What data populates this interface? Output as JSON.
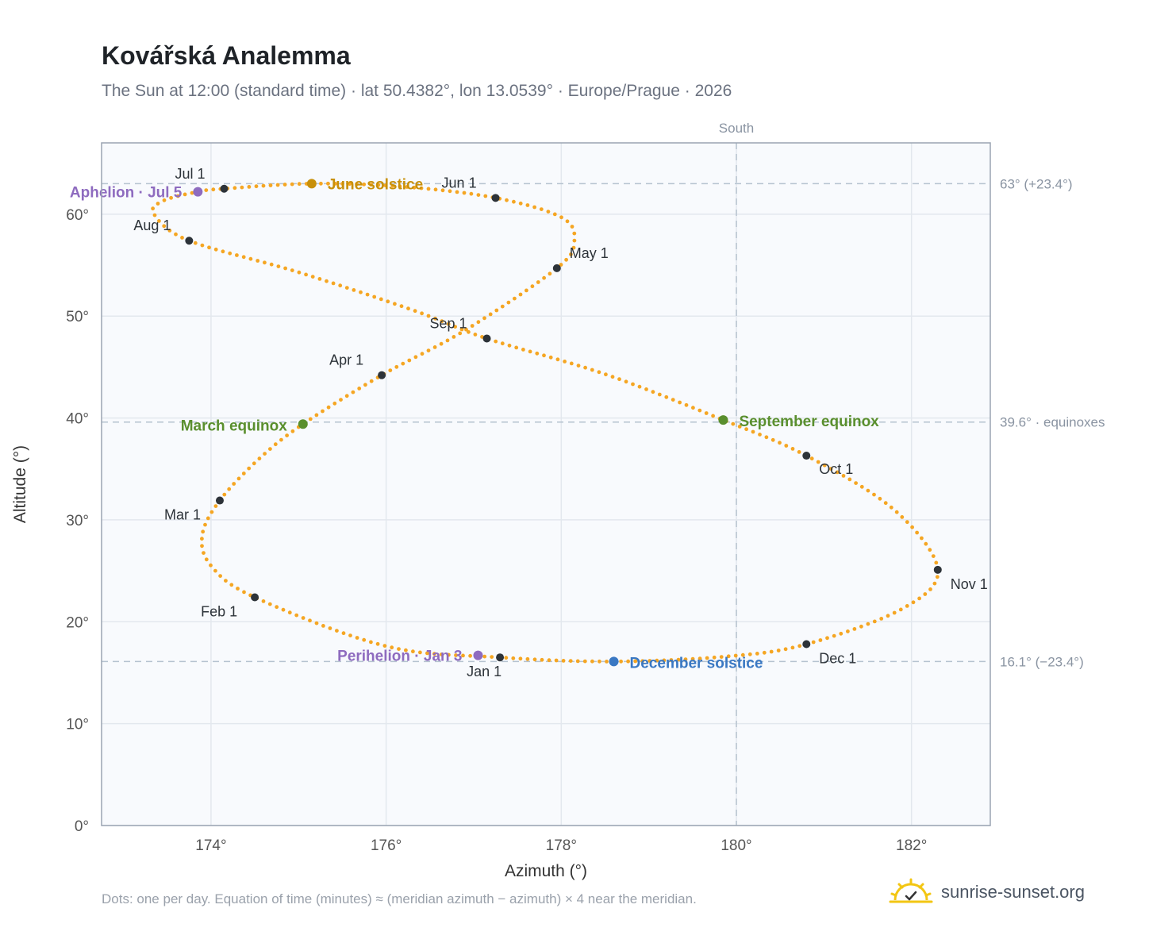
{
  "chart_data": {
    "type": "scatter",
    "title": "Kovářská Analemma",
    "subtitle": "The Sun at 12:00 (standard time) · lat 50.4382°, lon 13.0539° · Europe/Prague · 2026",
    "xlabel": "Azimuth (°)",
    "ylabel": "Altitude (°)",
    "xlim": [
      172.75,
      182.9
    ],
    "ylim": [
      0,
      67
    ],
    "x_ticks": [
      174,
      176,
      178,
      180,
      182
    ],
    "x_tick_labels": [
      "174°",
      "176°",
      "178°",
      "180°",
      "182°"
    ],
    "y_ticks": [
      0,
      10,
      20,
      30,
      40,
      50,
      60
    ],
    "y_tick_labels": [
      "0°",
      "10°",
      "20°",
      "30°",
      "40°",
      "50°",
      "60°"
    ],
    "grid": true,
    "meridian": {
      "azimuth": 180,
      "label": "South"
    },
    "reference_lines": [
      {
        "altitude": 63.0,
        "label": "63° (+23.4°)"
      },
      {
        "altitude": 39.6,
        "label": "39.6° · equinoxes"
      },
      {
        "altitude": 16.1,
        "label": "16.1° (−23.4°)"
      }
    ],
    "series_color": "#f5a623",
    "path_knots": [
      [
        178.6,
        16.1
      ],
      [
        177.3,
        16.5
      ],
      [
        176.0,
        17.6
      ],
      [
        174.5,
        22.4
      ],
      [
        174.0,
        25.5
      ],
      [
        173.9,
        28.5
      ],
      [
        174.1,
        31.9
      ],
      [
        174.55,
        36.0
      ],
      [
        175.05,
        39.4
      ],
      [
        175.95,
        44.2
      ],
      [
        176.9,
        48.6
      ],
      [
        177.95,
        54.7
      ],
      [
        178.15,
        57.4
      ],
      [
        178.0,
        59.7
      ],
      [
        177.25,
        61.6
      ],
      [
        176.2,
        62.7
      ],
      [
        175.15,
        63.0
      ],
      [
        174.15,
        62.5
      ],
      [
        173.85,
        62.2
      ],
      [
        173.45,
        61.3
      ],
      [
        173.35,
        60.0
      ],
      [
        173.75,
        57.4
      ],
      [
        175.0,
        54.3
      ],
      [
        176.3,
        50.6
      ],
      [
        177.15,
        47.8
      ],
      [
        178.5,
        44.3
      ],
      [
        179.85,
        39.8
      ],
      [
        180.8,
        36.3
      ],
      [
        181.8,
        31.0
      ],
      [
        182.3,
        25.1
      ],
      [
        181.9,
        21.3
      ],
      [
        180.8,
        17.8
      ],
      [
        179.9,
        16.6
      ],
      [
        178.6,
        16.1
      ]
    ],
    "month_points": [
      {
        "label": "Jan 1",
        "az": 177.3,
        "alt": 16.5
      },
      {
        "label": "Feb 1",
        "az": 174.5,
        "alt": 22.4
      },
      {
        "label": "Mar 1",
        "az": 174.1,
        "alt": 31.9
      },
      {
        "label": "Apr 1",
        "az": 175.95,
        "alt": 44.2
      },
      {
        "label": "May 1",
        "az": 177.95,
        "alt": 54.7
      },
      {
        "label": "Jun 1",
        "az": 177.25,
        "alt": 61.6
      },
      {
        "label": "Jul 1",
        "az": 174.15,
        "alt": 62.5
      },
      {
        "label": "Aug 1",
        "az": 173.75,
        "alt": 57.4
      },
      {
        "label": "Sep 1",
        "az": 177.15,
        "alt": 47.8
      },
      {
        "label": "Oct 1",
        "az": 180.8,
        "alt": 36.3
      },
      {
        "label": "Nov 1",
        "az": 182.3,
        "alt": 25.1
      },
      {
        "label": "Dec 1",
        "az": 180.8,
        "alt": 17.8
      }
    ],
    "events": [
      {
        "label": "June solstice",
        "az": 175.15,
        "alt": 63.0,
        "color": "#c8900a"
      },
      {
        "label": "Aphelion · Jul 5",
        "az": 173.85,
        "alt": 62.2,
        "color": "#8e6bbf"
      },
      {
        "label": "March equinox",
        "az": 175.05,
        "alt": 39.4,
        "color": "#5a8f2e"
      },
      {
        "label": "September equinox",
        "az": 179.85,
        "alt": 39.8,
        "color": "#5a8f2e"
      },
      {
        "label": "Perihelion · Jan 3",
        "az": 177.05,
        "alt": 16.7,
        "color": "#8e6bbf"
      },
      {
        "label": "December solstice",
        "az": 178.6,
        "alt": 16.1,
        "color": "#3a78c3"
      }
    ]
  },
  "footnote": "Dots: one per day. Equation of time (minutes) ≈ (meridian azimuth − azimuth) × 4 near the meridian.",
  "brand": {
    "name": "sunrise-sunset.org",
    "logo_icon": "sun-logo-icon"
  }
}
